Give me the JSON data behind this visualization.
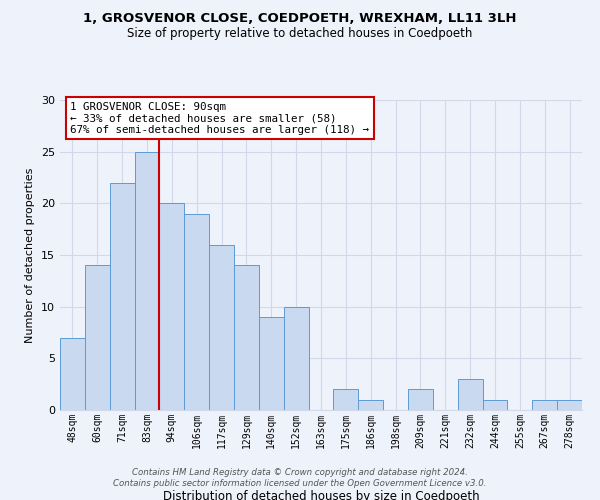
{
  "title1": "1, GROSVENOR CLOSE, COEDPOETH, WREXHAM, LL11 3LH",
  "title2": "Size of property relative to detached houses in Coedpoeth",
  "xlabel": "Distribution of detached houses by size in Coedpoeth",
  "ylabel": "Number of detached properties",
  "bin_labels": [
    "48sqm",
    "60sqm",
    "71sqm",
    "83sqm",
    "94sqm",
    "106sqm",
    "117sqm",
    "129sqm",
    "140sqm",
    "152sqm",
    "163sqm",
    "175sqm",
    "186sqm",
    "198sqm",
    "209sqm",
    "221sqm",
    "232sqm",
    "244sqm",
    "255sqm",
    "267sqm",
    "278sqm"
  ],
  "values": [
    7,
    14,
    22,
    25,
    20,
    19,
    16,
    14,
    9,
    10,
    0,
    2,
    1,
    0,
    2,
    0,
    3,
    1,
    0,
    1,
    1
  ],
  "bar_color": "#c8d9f0",
  "bar_edge_color": "#5b9bd5",
  "vline_color": "#cc0000",
  "annotation_line1": "1 GROSVENOR CLOSE: 90sqm",
  "annotation_line2": "← 33% of detached houses are smaller (58)",
  "annotation_line3": "67% of semi-detached houses are larger (118) →",
  "annotation_box_color": "#ffffff",
  "annotation_box_edge": "#cc0000",
  "footer1": "Contains HM Land Registry data © Crown copyright and database right 2024.",
  "footer2": "Contains public sector information licensed under the Open Government Licence v3.0.",
  "ylim": [
    0,
    30
  ],
  "yticks": [
    0,
    5,
    10,
    15,
    20,
    25,
    30
  ],
  "background_color": "#eef2fa",
  "grid_color": "#d0d8ea",
  "vline_bin_index": 3
}
